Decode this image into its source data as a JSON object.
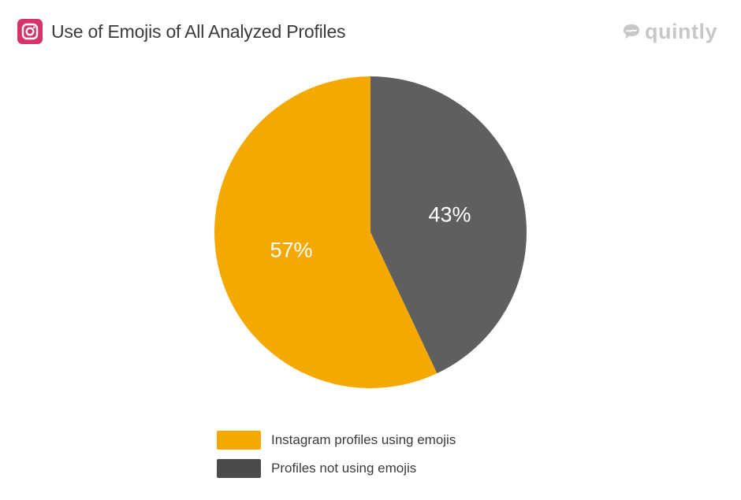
{
  "header": {
    "title": "Use of Emojis of All Analyzed Profiles",
    "platform_icon": "instagram-icon",
    "platform_color": "#d5336b"
  },
  "brand": {
    "name": "quintly",
    "icon": "quintly-logo-icon"
  },
  "chart_data": {
    "type": "pie",
    "title": "Use of Emojis of All Analyzed Profiles",
    "start": "12 o'clock",
    "direction": "clockwise",
    "legend_position": "bottom",
    "slices": [
      {
        "label": "Profiles not using emojis",
        "value": 43,
        "display": "43%",
        "color": "#5f5f5f"
      },
      {
        "label": "Instagram profiles using emojis",
        "value": 57,
        "display": "57%",
        "color": "#f5a800"
      }
    ]
  },
  "legend": {
    "items": [
      {
        "label": "Instagram profiles using emojis",
        "color": "#f5a800"
      },
      {
        "label": "Profiles not using emojis",
        "color": "#4b4b4b"
      }
    ]
  }
}
